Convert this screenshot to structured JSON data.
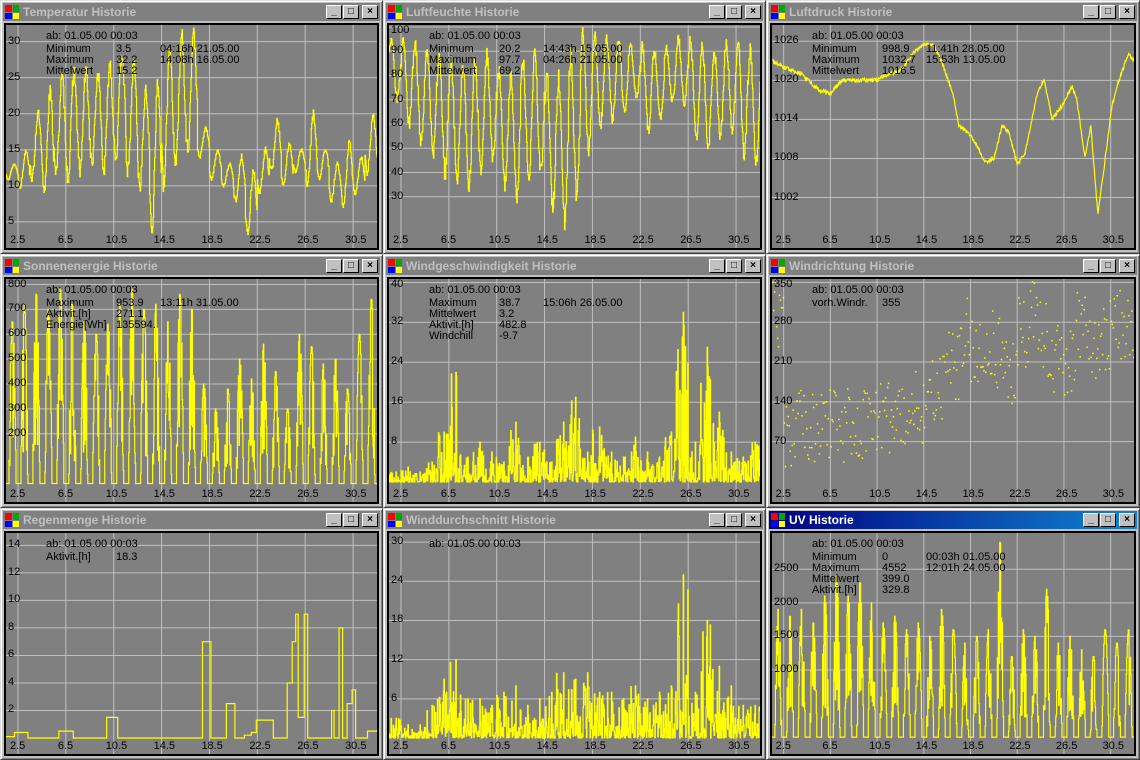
{
  "since_label": "ab: 01.05.00 00:03",
  "window_buttons": {
    "minimize": "_",
    "maximize": "□",
    "close": "×"
  },
  "colors": {
    "plot_bg": "#808080",
    "grid": "#c0c0c0",
    "series": "#ffff00",
    "title_active_start": "#000080",
    "title_active_end": "#1084d0",
    "title_inactive": "#808080"
  },
  "windows": [
    {
      "title": "Temperatur Historie",
      "active": false,
      "stats": [
        {
          "label": "Minimum",
          "value": "3.5",
          "time": "04:16h 21.05.00"
        },
        {
          "label": "Maximum",
          "value": "32.2",
          "time": "14:08h 16.05.00"
        },
        {
          "label": "Mittelwert",
          "value": "15.2",
          "time": ""
        }
      ],
      "chart_data": {
        "type": "line",
        "mode": "diurnal",
        "ylim": [
          3.6,
          32.3
        ],
        "yticks": [
          30,
          25,
          20,
          15,
          10,
          5
        ],
        "highs": [
          13,
          15,
          20,
          23,
          25,
          26,
          26,
          25.5,
          27,
          28.5,
          27,
          23,
          24,
          29.5,
          31,
          31,
          18,
          15,
          13,
          14,
          12,
          15,
          19,
          16,
          15,
          20,
          15,
          13,
          16,
          14,
          19.5
        ],
        "lows": [
          11,
          10,
          11,
          9,
          12,
          11,
          12,
          13,
          12,
          14,
          12,
          10,
          4,
          10,
          13,
          15,
          14,
          11,
          10,
          8,
          3.5,
          9,
          12,
          10,
          12,
          10,
          11,
          8,
          7,
          9,
          12
        ]
      }
    },
    {
      "title": "Luftfeuchte Historie",
      "active": false,
      "stats": [
        {
          "label": "Minimum",
          "value": "20.2",
          "time": "14:43h 15.05.00"
        },
        {
          "label": "Maximum",
          "value": "97.7",
          "time": "04:26h 21.05.00"
        },
        {
          "label": "Mittelwert",
          "value": "69.2",
          "time": ""
        }
      ],
      "chart_data": {
        "type": "line",
        "mode": "diurnal",
        "invert": true,
        "ylim": [
          15.5,
          100.8
        ],
        "yticks": [
          100,
          90,
          80,
          70,
          60,
          50,
          40,
          30
        ],
        "highs": [
          95,
          94,
          93,
          90,
          88,
          85,
          83,
          85,
          88,
          82,
          80,
          86,
          88,
          80,
          78,
          88,
          97,
          96,
          95,
          94,
          93,
          92,
          90,
          91,
          95,
          94,
          92,
          90,
          93,
          92,
          90
        ],
        "lows": [
          70,
          60,
          52,
          48,
          40,
          38,
          35,
          40,
          45,
          35,
          30,
          38,
          40,
          25,
          20,
          30,
          50,
          60,
          62,
          65,
          70,
          58,
          62,
          70,
          68,
          55,
          50,
          55,
          58,
          48,
          45
        ]
      }
    },
    {
      "title": "Luftdruck Historie",
      "active": false,
      "stats": [
        {
          "label": "Minimum",
          "value": "998.9",
          "time": "11:41h 28.05.00"
        },
        {
          "label": "Maximum",
          "value": "1032.7",
          "time": "15:53h 13.05.00"
        },
        {
          "label": "Mittelwert",
          "value": "1016.5",
          "time": ""
        }
      ],
      "chart_data": {
        "type": "line",
        "mode": "points",
        "ylim": [
          996.7,
          1028.5
        ],
        "yticks": [
          1026,
          1020,
          1014,
          1008,
          1002
        ],
        "points": [
          [
            1.5,
            1023
          ],
          [
            2.5,
            1022
          ],
          [
            4,
            1021
          ],
          [
            5.5,
            1018.5
          ],
          [
            6.5,
            1018
          ],
          [
            7.5,
            1020
          ],
          [
            9,
            1020
          ],
          [
            10.5,
            1020
          ],
          [
            11.5,
            1021
          ],
          [
            12.5,
            1021.5
          ],
          [
            13.5,
            1024
          ],
          [
            14.5,
            1025.5
          ],
          [
            15.3,
            1025.5
          ],
          [
            16,
            1023
          ],
          [
            17,
            1018
          ],
          [
            17.5,
            1013
          ],
          [
            18.3,
            1012
          ],
          [
            19,
            1010
          ],
          [
            19.8,
            1007.5
          ],
          [
            20.5,
            1008
          ],
          [
            21.2,
            1013
          ],
          [
            21.8,
            1012
          ],
          [
            22.5,
            1007
          ],
          [
            23.2,
            1009
          ],
          [
            24.2,
            1018
          ],
          [
            24.8,
            1020
          ],
          [
            25.5,
            1014
          ],
          [
            26.3,
            1016
          ],
          [
            27.2,
            1019
          ],
          [
            27.6,
            1017
          ],
          [
            28.3,
            1008
          ],
          [
            28.8,
            1013
          ],
          [
            29.4,
            999.5
          ],
          [
            29.9,
            1006
          ],
          [
            30.6,
            1016
          ],
          [
            31.2,
            1020
          ],
          [
            32,
            1024
          ],
          [
            32.5,
            1023
          ]
        ]
      }
    },
    {
      "title": "Sonnenenergie Historie",
      "active": false,
      "stats": [
        {
          "label": "Maximum",
          "value": "953.9",
          "time": "13:11h 31.05.00"
        },
        {
          "label": "Aktivit.[h]",
          "value": "271.1",
          "time": ""
        },
        {
          "label": "Energie[Wh]",
          "value": "135594.",
          "time": ""
        }
      ],
      "chart_data": {
        "type": "line",
        "mode": "solar",
        "ylim": [
          -10,
          822
        ],
        "yticks": [
          800,
          700,
          600,
          500,
          400,
          300,
          200
        ],
        "peaks": [
          650,
          720,
          760,
          700,
          780,
          720,
          650,
          600,
          640,
          720,
          780,
          700,
          720,
          650,
          760,
          700,
          400,
          300,
          380,
          500,
          420,
          560,
          450,
          300,
          600,
          550,
          480,
          500,
          380,
          600,
          740
        ]
      }
    },
    {
      "title": "Windgeschwindigkeit Historie",
      "active": false,
      "stats": [
        {
          "label": "Maximum",
          "value": "38.7",
          "time": "15:06h 26.05.00"
        },
        {
          "label": "Mittelwert",
          "value": "3.2",
          "time": ""
        },
        {
          "label": "Aktivit.[h]",
          "value": "482.8",
          "time": ""
        },
        {
          "label": "Windchill",
          "value": "-9.7",
          "time": ""
        }
      ],
      "chart_data": {
        "type": "line",
        "mode": "gust",
        "ylim": [
          -0.8,
          40.7
        ],
        "yticks": [
          40,
          32,
          24,
          16,
          8
        ],
        "peaks": [
          2,
          3,
          2,
          4,
          10,
          22,
          5,
          8,
          6,
          4,
          12,
          5,
          8,
          4,
          12,
          17,
          6,
          11,
          6,
          5,
          9,
          6,
          5,
          10,
          34,
          8,
          27,
          14,
          6,
          5,
          8
        ]
      }
    },
    {
      "title": "Windrichtung Historie",
      "active": false,
      "stats": [
        {
          "label": "vorh.Windr.",
          "value": "355",
          "time": ""
        }
      ],
      "chart_data": {
        "type": "scatter",
        "mode": "scatter",
        "ylim": [
          -8,
          356
        ],
        "yticks": [
          350,
          280,
          210,
          140,
          70
        ],
        "means": [
          300,
          90,
          100,
          95,
          100,
          110,
          100,
          105,
          110,
          120,
          115,
          115,
          130,
          150,
          170,
          200,
          260,
          240,
          250,
          230,
          200,
          260,
          290,
          250,
          220,
          210,
          270,
          240,
          260,
          280,
          270
        ]
      }
    },
    {
      "title": "Regenmenge Historie",
      "active": false,
      "stats": [
        {
          "label": "Aktivit.[h]",
          "value": "18.3",
          "time": ""
        }
      ],
      "chart_data": {
        "type": "line",
        "mode": "steps",
        "ylim": [
          0,
          14.9
        ],
        "yticks": [
          14,
          12,
          10,
          8,
          6,
          4,
          2
        ],
        "points": [
          [
            1.5,
            0.1
          ],
          [
            2.2,
            0.4
          ],
          [
            3,
            0.4
          ],
          [
            3.3,
            0
          ],
          [
            5.5,
            0
          ],
          [
            5.9,
            0.5
          ],
          [
            6.8,
            0.5
          ],
          [
            7.1,
            0
          ],
          [
            9.4,
            0
          ],
          [
            9.9,
            1.5
          ],
          [
            10.5,
            1.5
          ],
          [
            10.8,
            0
          ],
          [
            17.5,
            0
          ],
          [
            17.9,
            7
          ],
          [
            18.3,
            7
          ],
          [
            18.6,
            0
          ],
          [
            19.7,
            0
          ],
          [
            19.9,
            2.5
          ],
          [
            20.6,
            0
          ],
          [
            21.4,
            0.2
          ],
          [
            22,
            0.4
          ],
          [
            22.4,
            1.3
          ],
          [
            23.5,
            1.3
          ],
          [
            23.8,
            0
          ],
          [
            24.6,
            0
          ],
          [
            25,
            4
          ],
          [
            25.4,
            7
          ],
          [
            25.7,
            9
          ],
          [
            25.9,
            1.5
          ],
          [
            26.4,
            9
          ],
          [
            26.7,
            0
          ],
          [
            28.3,
            0
          ],
          [
            28.7,
            2
          ],
          [
            28.9,
            0
          ],
          [
            29.3,
            8
          ],
          [
            29.6,
            0
          ],
          [
            30,
            2.5
          ],
          [
            30.4,
            3.5
          ],
          [
            30.7,
            0
          ],
          [
            31.5,
            0
          ],
          [
            31.7,
            0.5
          ],
          [
            32.5,
            0.6
          ]
        ]
      }
    },
    {
      "title": "Winddurchschnitt     Historie",
      "active": false,
      "stats": [],
      "chart_data": {
        "type": "line",
        "mode": "gust",
        "ylim": [
          0,
          31.4
        ],
        "yticks": [
          30,
          24,
          18,
          12,
          6
        ],
        "peaks": [
          3,
          2,
          2,
          5,
          9,
          12,
          6,
          6,
          5,
          7,
          8,
          5,
          6,
          7,
          10,
          9,
          10,
          7,
          7,
          6,
          8,
          6,
          7,
          8,
          25,
          7,
          18,
          11,
          8,
          5,
          5
        ]
      }
    },
    {
      "title": "UV Historie",
      "active": true,
      "stats": [
        {
          "label": "Minimum",
          "value": "0",
          "time": "00:03h 01.05.00"
        },
        {
          "label": "Maximum",
          "value": "4552",
          "time": "12:01h 24.05.00"
        },
        {
          "label": "Mittelwert",
          "value": "399.0",
          "time": ""
        },
        {
          "label": "Aktivit.[h]",
          "value": "329.8",
          "time": ""
        }
      ],
      "chart_data": {
        "type": "line",
        "mode": "solar",
        "ylim": [
          -13,
          3040
        ],
        "yticks": [
          2500,
          2000,
          1500,
          1000
        ],
        "peaks": [
          1900,
          1800,
          1900,
          1700,
          2100,
          2400,
          2100,
          2300,
          2000,
          1700,
          1800,
          1600,
          1700,
          1500,
          1900,
          1600,
          1400,
          1500,
          1600,
          2900,
          1200,
          1600,
          1500,
          2200,
          1400,
          1500,
          1300,
          1200,
          1600,
          1400,
          1600
        ]
      }
    }
  ],
  "xaxis": {
    "xlim": [
      1.5,
      32.5
    ],
    "ticks": [
      "2.5",
      "6.5",
      "10.5",
      "14.5",
      "18.5",
      "22.5",
      "26.5",
      "30.5"
    ]
  }
}
